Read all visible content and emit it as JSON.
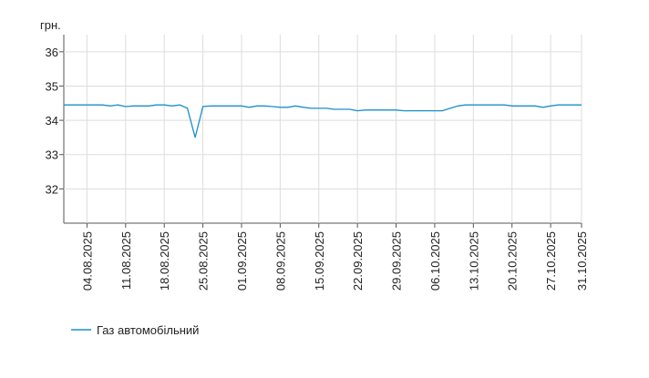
{
  "chart_data": {
    "type": "line",
    "y_label": "грн.",
    "categories": [
      null,
      null,
      null,
      "04.08.2025",
      null,
      null,
      null,
      null,
      "11.08.2025",
      null,
      null,
      null,
      null,
      "18.08.2025",
      null,
      null,
      null,
      null,
      "25.08.2025",
      null,
      null,
      null,
      null,
      "01.09.2025",
      null,
      null,
      null,
      null,
      "08.09.2025",
      null,
      null,
      null,
      null,
      "15.09.2025",
      null,
      null,
      null,
      null,
      "22.09.2025",
      null,
      null,
      null,
      null,
      "29.09.2025",
      null,
      null,
      null,
      null,
      "06.10.2025",
      null,
      null,
      null,
      null,
      "13.10.2025",
      null,
      null,
      null,
      null,
      "20.10.2025",
      null,
      null,
      null,
      null,
      "27.10.2025",
      null,
      null,
      null,
      "31.10.2025"
    ],
    "series": [
      {
        "name": "Газ автомобільний",
        "color": "#1a8fc9",
        "values": [
          34.45,
          34.45,
          34.45,
          34.45,
          34.45,
          34.45,
          34.42,
          34.45,
          34.4,
          34.42,
          34.42,
          34.42,
          34.45,
          34.45,
          34.42,
          34.45,
          34.35,
          33.5,
          34.4,
          34.42,
          34.42,
          34.42,
          34.42,
          34.42,
          34.38,
          34.42,
          34.42,
          34.4,
          34.38,
          34.38,
          34.42,
          34.38,
          34.35,
          34.35,
          34.35,
          34.32,
          34.32,
          34.32,
          34.28,
          34.3,
          34.3,
          34.3,
          34.3,
          34.3,
          34.28,
          34.28,
          34.28,
          34.28,
          34.28,
          34.28,
          34.35,
          34.42,
          34.45,
          34.45,
          34.45,
          34.45,
          34.45,
          34.45,
          34.42,
          34.42,
          34.42,
          34.42,
          34.38,
          34.42,
          34.45,
          34.45,
          34.45,
          34.45
        ]
      }
    ],
    "ylim": [
      31,
      36.5
    ],
    "yticks": [
      32,
      33,
      34,
      35,
      36
    ],
    "grid": true
  }
}
